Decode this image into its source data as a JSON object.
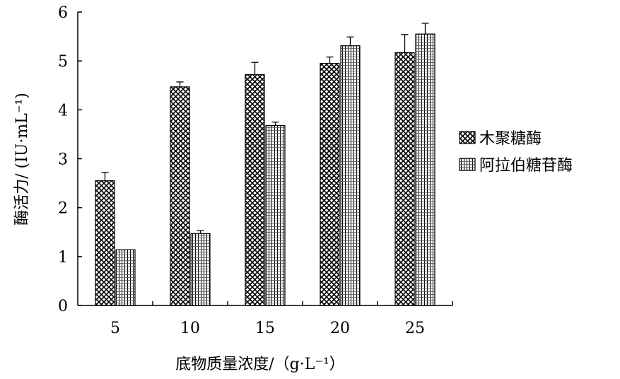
{
  "chart_data": {
    "type": "bar",
    "xlabel": "底物质量浓度/（g·L⁻¹）",
    "ylabel": "酶活力/ (IU·mL⁻¹)",
    "categories": [
      "5",
      "10",
      "15",
      "20",
      "25"
    ],
    "ylim": [
      0,
      6
    ],
    "yticks": [
      "0",
      "1",
      "2",
      "3",
      "4",
      "5",
      "6"
    ],
    "grid": false,
    "legend_position": "right",
    "series": [
      {
        "name": "木聚糖酶",
        "pattern": "crosshatch",
        "values": [
          2.55,
          4.47,
          4.72,
          4.95,
          5.17
        ],
        "errors": [
          0.17,
          0.1,
          0.25,
          0.13,
          0.37
        ]
      },
      {
        "name": "阿拉伯糖苷酶",
        "pattern": "fine-grid",
        "values": [
          1.14,
          1.47,
          3.68,
          5.31,
          5.55
        ],
        "errors": [
          0.0,
          0.06,
          0.07,
          0.18,
          0.22
        ]
      }
    ]
  }
}
